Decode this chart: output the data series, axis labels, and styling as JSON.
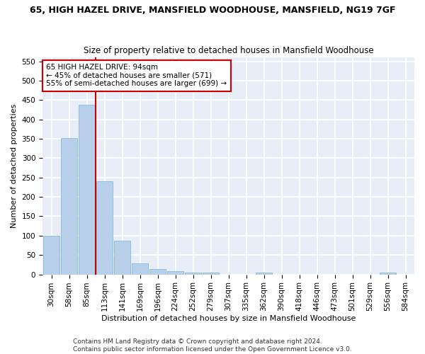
{
  "title_line1": "65, HIGH HAZEL DRIVE, MANSFIELD WOODHOUSE, MANSFIELD, NG19 7GF",
  "title_line2": "Size of property relative to detached houses in Mansfield Woodhouse",
  "xlabel": "Distribution of detached houses by size in Mansfield Woodhouse",
  "ylabel": "Number of detached properties",
  "bar_labels": [
    "30sqm",
    "58sqm",
    "85sqm",
    "113sqm",
    "141sqm",
    "169sqm",
    "196sqm",
    "224sqm",
    "252sqm",
    "279sqm",
    "307sqm",
    "335sqm",
    "362sqm",
    "390sqm",
    "418sqm",
    "446sqm",
    "473sqm",
    "501sqm",
    "529sqm",
    "556sqm",
    "584sqm"
  ],
  "bar_values": [
    100,
    352,
    438,
    240,
    87,
    29,
    13,
    9,
    5,
    5,
    0,
    0,
    5,
    0,
    0,
    0,
    0,
    0,
    0,
    5,
    0
  ],
  "bar_color": "#b8d0ea",
  "bar_edgecolor": "#7aafd4",
  "vline_x": 2.5,
  "vline_color": "#cc0000",
  "ylim": [
    0,
    560
  ],
  "yticks": [
    0,
    50,
    100,
    150,
    200,
    250,
    300,
    350,
    400,
    450,
    500,
    550
  ],
  "annotation_title": "65 HIGH HAZEL DRIVE: 94sqm",
  "annotation_line1": "← 45% of detached houses are smaller (571)",
  "annotation_line2": "55% of semi-detached houses are larger (699) →",
  "annotation_box_color": "#ffffff",
  "annotation_box_edge": "#cc0000",
  "footer_line1": "Contains HM Land Registry data © Crown copyright and database right 2024.",
  "footer_line2": "Contains public sector information licensed under the Open Government Licence v3.0.",
  "fig_facecolor": "#ffffff",
  "background_color": "#e8eef8",
  "grid_color": "#ffffff",
  "title_fontsize": 9,
  "subtitle_fontsize": 8.5,
  "axis_label_fontsize": 8,
  "tick_fontsize": 7.5,
  "annotation_fontsize": 7.5,
  "footer_fontsize": 6.5
}
